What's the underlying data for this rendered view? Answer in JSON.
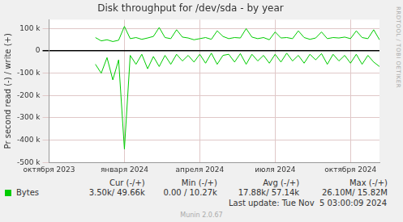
{
  "chart_data": {
    "type": "line",
    "title": "Disk throughput for /dev/sda - by year",
    "y_label": "Pr second read (-) / write (+)",
    "categories": [
      "октября 2023",
      null,
      null,
      null,
      null,
      null,
      null,
      null,
      null,
      null,
      null,
      null,
      null,
      "января 2024",
      null,
      null,
      null,
      null,
      null,
      null,
      null,
      null,
      null,
      null,
      null,
      null,
      "апреля 2024",
      null,
      null,
      null,
      null,
      null,
      null,
      null,
      null,
      null,
      null,
      null,
      null,
      "июля 2024",
      null,
      null,
      null,
      null,
      null,
      null,
      null,
      null,
      null,
      null,
      null,
      null,
      "октября 2024",
      null,
      null,
      null,
      null,
      null
    ],
    "series": [
      {
        "name": "Bytes",
        "color": "#00cc00",
        "values": [
          null,
          null,
          null,
          null,
          null,
          null,
          null,
          null,
          60000,
          45000,
          50000,
          42000,
          48000,
          110000,
          55000,
          60000,
          52000,
          58000,
          65000,
          105000,
          60000,
          55000,
          95000,
          62000,
          58000,
          50000,
          55000,
          60000,
          52000,
          90000,
          65000,
          55000,
          60000,
          58000,
          100000,
          62000,
          55000,
          60000,
          50000,
          85000,
          58000,
          60000,
          55000,
          90000,
          60000,
          52000,
          58000,
          85000,
          55000,
          60000,
          58000,
          62000,
          55000,
          90000,
          60000,
          55000,
          95000,
          50000
        ],
        "read_values": [
          null,
          null,
          null,
          null,
          null,
          null,
          null,
          null,
          -60000,
          -100000,
          -30000,
          -130000,
          -40000,
          -440000,
          -20000,
          -60000,
          -15000,
          -80000,
          -25000,
          -70000,
          -20000,
          -60000,
          -15000,
          -45000,
          -20000,
          -50000,
          -15000,
          -55000,
          -10000,
          -60000,
          -20000,
          -15000,
          -50000,
          -12000,
          -60000,
          -15000,
          -45000,
          -20000,
          -55000,
          -15000,
          -50000,
          -10000,
          -45000,
          -20000,
          -55000,
          -15000,
          -40000,
          -12000,
          -60000,
          -15000,
          -45000,
          -20000,
          -55000,
          -15000,
          -60000,
          -20000,
          -50000,
          -70000
        ]
      }
    ],
    "ylim": [
      -500000,
      140000
    ],
    "yticks": [
      {
        "value": 100000,
        "label": "100 k"
      },
      0,
      {
        "value": -100000,
        "label": "-100 k"
      },
      {
        "value": -200000,
        "label": "-200 k"
      },
      {
        "value": -300000,
        "label": "-300 k"
      },
      {
        "value": -400000,
        "label": "-400 k"
      },
      {
        "value": -500000,
        "label": "-500 k"
      }
    ],
    "grid": true,
    "legend": "bottom",
    "stats": {
      "columns": [
        "Cur (-/+)",
        "Min (-/+)",
        "Avg (-/+)",
        "Max (-/+)"
      ],
      "values": [
        "3.50k/ 49.66k",
        "0.00 / 10.27k",
        "17.88k/ 57.14k",
        "26.10M/ 15.82M"
      ]
    },
    "last_update": "Last update: Tue Nov  5 03:00:09 2024",
    "credit": "Munin 2.0.67",
    "watermark": "RRDTOOL / TOBI OETIKER"
  }
}
